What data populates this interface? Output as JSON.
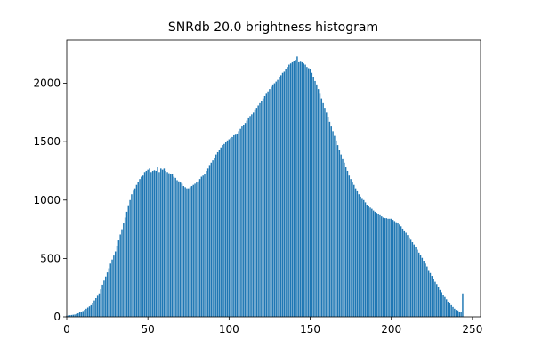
{
  "chart_data": {
    "type": "bar",
    "title": "SNRdb 20.0 brightness histogram",
    "color": "#1f77b4",
    "bar_width": 0.8,
    "x": [
      0,
      1,
      2,
      3,
      4,
      5,
      6,
      7,
      8,
      9,
      10,
      11,
      12,
      13,
      14,
      15,
      16,
      17,
      18,
      19,
      20,
      21,
      22,
      23,
      24,
      25,
      26,
      27,
      28,
      29,
      30,
      31,
      32,
      33,
      34,
      35,
      36,
      37,
      38,
      39,
      40,
      41,
      42,
      43,
      44,
      45,
      46,
      47,
      48,
      49,
      50,
      51,
      52,
      53,
      54,
      55,
      56,
      57,
      58,
      59,
      60,
      61,
      62,
      63,
      64,
      65,
      66,
      67,
      68,
      69,
      70,
      71,
      72,
      73,
      74,
      75,
      76,
      77,
      78,
      79,
      80,
      81,
      82,
      83,
      84,
      85,
      86,
      87,
      88,
      89,
      90,
      91,
      92,
      93,
      94,
      95,
      96,
      97,
      98,
      99,
      100,
      101,
      102,
      103,
      104,
      105,
      106,
      107,
      108,
      109,
      110,
      111,
      112,
      113,
      114,
      115,
      116,
      117,
      118,
      119,
      120,
      121,
      122,
      123,
      124,
      125,
      126,
      127,
      128,
      129,
      130,
      131,
      132,
      133,
      134,
      135,
      136,
      137,
      138,
      139,
      140,
      141,
      142,
      143,
      144,
      145,
      146,
      147,
      148,
      149,
      150,
      151,
      152,
      153,
      154,
      155,
      156,
      157,
      158,
      159,
      160,
      161,
      162,
      163,
      164,
      165,
      166,
      167,
      168,
      169,
      170,
      171,
      172,
      173,
      174,
      175,
      176,
      177,
      178,
      179,
      180,
      181,
      182,
      183,
      184,
      185,
      186,
      187,
      188,
      189,
      190,
      191,
      192,
      193,
      194,
      195,
      196,
      197,
      198,
      199,
      200,
      201,
      202,
      203,
      204,
      205,
      206,
      207,
      208,
      209,
      210,
      211,
      212,
      213,
      214,
      215,
      216,
      217,
      218,
      219,
      220,
      221,
      222,
      223,
      224,
      225,
      226,
      227,
      228,
      229,
      230,
      231,
      232,
      233,
      234,
      235,
      236,
      237,
      238,
      239,
      240,
      241,
      242,
      243,
      244
    ],
    "values": [
      10,
      12,
      14,
      16,
      18,
      20,
      25,
      30,
      38,
      45,
      50,
      60,
      70,
      80,
      90,
      100,
      120,
      140,
      160,
      180,
      200,
      235,
      275,
      310,
      345,
      380,
      415,
      455,
      490,
      525,
      560,
      610,
      655,
      705,
      750,
      800,
      850,
      900,
      955,
      1000,
      1050,
      1080,
      1100,
      1130,
      1155,
      1180,
      1200,
      1210,
      1240,
      1250,
      1260,
      1270,
      1240,
      1250,
      1255,
      1250,
      1280,
      1240,
      1270,
      1260,
      1270,
      1250,
      1240,
      1230,
      1225,
      1220,
      1200,
      1190,
      1170,
      1160,
      1150,
      1140,
      1120,
      1110,
      1100,
      1100,
      1110,
      1120,
      1130,
      1140,
      1150,
      1160,
      1180,
      1200,
      1210,
      1220,
      1250,
      1270,
      1300,
      1320,
      1340,
      1360,
      1390,
      1410,
      1430,
      1450,
      1470,
      1480,
      1500,
      1510,
      1520,
      1530,
      1540,
      1555,
      1560,
      1570,
      1590,
      1610,
      1630,
      1645,
      1660,
      1680,
      1700,
      1720,
      1735,
      1750,
      1770,
      1790,
      1810,
      1830,
      1850,
      1870,
      1890,
      1910,
      1930,
      1950,
      1970,
      1990,
      2000,
      2015,
      2030,
      2050,
      2070,
      2090,
      2100,
      2120,
      2140,
      2160,
      2170,
      2180,
      2190,
      2200,
      2230,
      2180,
      2185,
      2180,
      2170,
      2160,
      2140,
      2130,
      2120,
      2090,
      2050,
      2020,
      1990,
      1950,
      1910,
      1870,
      1830,
      1790,
      1750,
      1710,
      1670,
      1630,
      1590,
      1550,
      1510,
      1470,
      1430,
      1390,
      1350,
      1320,
      1280,
      1250,
      1210,
      1180,
      1150,
      1130,
      1100,
      1075,
      1050,
      1030,
      1010,
      1000,
      980,
      960,
      950,
      935,
      925,
      910,
      900,
      890,
      880,
      870,
      860,
      850,
      845,
      845,
      840,
      840,
      840,
      830,
      820,
      810,
      800,
      790,
      775,
      755,
      740,
      720,
      700,
      680,
      660,
      640,
      620,
      600,
      575,
      550,
      530,
      505,
      480,
      455,
      430,
      400,
      375,
      350,
      325,
      300,
      280,
      255,
      230,
      210,
      190,
      170,
      150,
      130,
      115,
      100,
      85,
      70,
      60,
      55,
      45,
      40,
      200
    ],
    "xlim": [
      0,
      255
    ],
    "xticks": [
      0,
      50,
      100,
      150,
      200,
      250
    ],
    "ylim": [
      0,
      2370
    ],
    "yticks": [
      0,
      500,
      1000,
      1500,
      2000
    ]
  }
}
